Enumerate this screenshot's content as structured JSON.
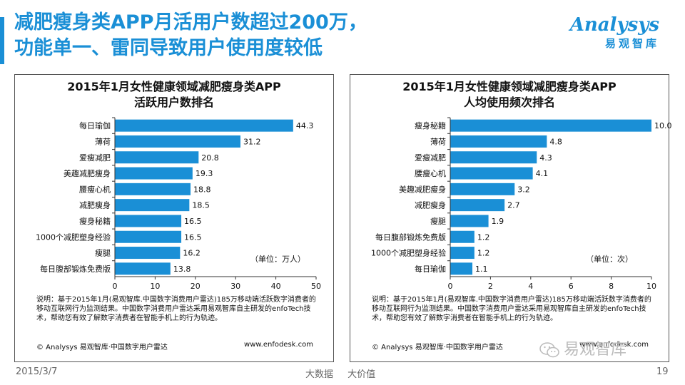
{
  "header": {
    "title_line1": "减肥瘦身类APP月活用户数超过200万，",
    "title_line2": "功能单一、雷同导致用户使用度较低"
  },
  "logo": {
    "main": "Analysys",
    "sub": "易观智库"
  },
  "chart_data": [
    {
      "type": "bar",
      "orientation": "horizontal",
      "title": "2015年1月女性健康领域减肥瘦身类APP\n活跃用户数排名",
      "title_line1": "2015年1月女性健康领域减肥瘦身类APP",
      "title_line2": "活跃用户数排名",
      "categories": [
        "每日瑜伽",
        "薄荷",
        "爱瘦减肥",
        "美趣减肥瘦身",
        "腰瘦心机",
        "减肥瘦身",
        "瘦身秘籍",
        "1000个减肥塑身经验",
        "瘦腿",
        "每日腹部锻炼免费版"
      ],
      "values": [
        44.3,
        31.2,
        20.8,
        19.3,
        18.8,
        18.5,
        16.5,
        16.5,
        16.2,
        13.8
      ],
      "value_labels": [
        "44.3",
        "31.2",
        "20.8",
        "19.3",
        "18.8",
        "18.5",
        "16.5",
        "16.5",
        "16.2",
        "13.8"
      ],
      "xlim": [
        0,
        50
      ],
      "xticks": [
        0,
        10,
        20,
        30,
        40,
        50
      ],
      "xtick_labels": [
        "0",
        "10",
        "20",
        "30",
        "40",
        "50"
      ],
      "unit": "（单位：万人）",
      "color": "#1a8fd6",
      "note": "说明：基于2015年1月(易观智库.中国数字消费用户雷达)185万移动端活跃数字消费者的移动互联网行为监测结果。中国数字消费用户雷达采用易观智库自主研发的enfoTech技术，帮助您有效了解数字消费者在智能手机上的行为轨迹。",
      "source": "© Analysys 易观智库·中国数字用户雷达",
      "website": "www.enfodesk.com"
    },
    {
      "type": "bar",
      "orientation": "horizontal",
      "title": "2015年1月女性健康领域减肥瘦身类APP\n人均使用频次排名",
      "title_line1": "2015年1月女性健康领域减肥瘦身类APP",
      "title_line2": "人均使用频次排名",
      "categories": [
        "瘦身秘籍",
        "薄荷",
        "爱瘦减肥",
        "腰瘦心机",
        "美趣减肥瘦身",
        "减肥瘦身",
        "瘦腿",
        "每日腹部锻炼免费版",
        "1000个减肥塑身经验",
        "每日瑜伽"
      ],
      "values": [
        10.0,
        4.8,
        4.3,
        4.1,
        3.2,
        2.7,
        1.9,
        1.2,
        1.2,
        1.1
      ],
      "value_labels": [
        "10.0",
        "4.8",
        "4.3",
        "4.1",
        "3.2",
        "2.7",
        "1.9",
        "1.2",
        "1.2",
        "1.1"
      ],
      "xlim": [
        0,
        10
      ],
      "xticks": [
        0,
        2,
        4,
        6,
        8,
        10
      ],
      "xtick_labels": [
        "0",
        "2",
        "4",
        "6",
        "8",
        "10"
      ],
      "unit": "（单位：次）",
      "color": "#1a8fd6",
      "note": "说明：基于2015年1月(易观智库.中国数字消费用户雷达)185万移动端活跃数字消费者的移动互联网行为监测结果。中国数字消费用户雷达采用易观智库自主研发的enfoTech技术，帮助您有效了解数字消费者在智能手机上的行为轨迹。",
      "source": "© Analysys 易观智库·中国数字用户雷达",
      "website": "www.enfodesk.com"
    }
  ],
  "footer": {
    "date": "2015/3/7",
    "slogan": "大数据 大价值",
    "page": "19",
    "wechat": "易观智库"
  }
}
